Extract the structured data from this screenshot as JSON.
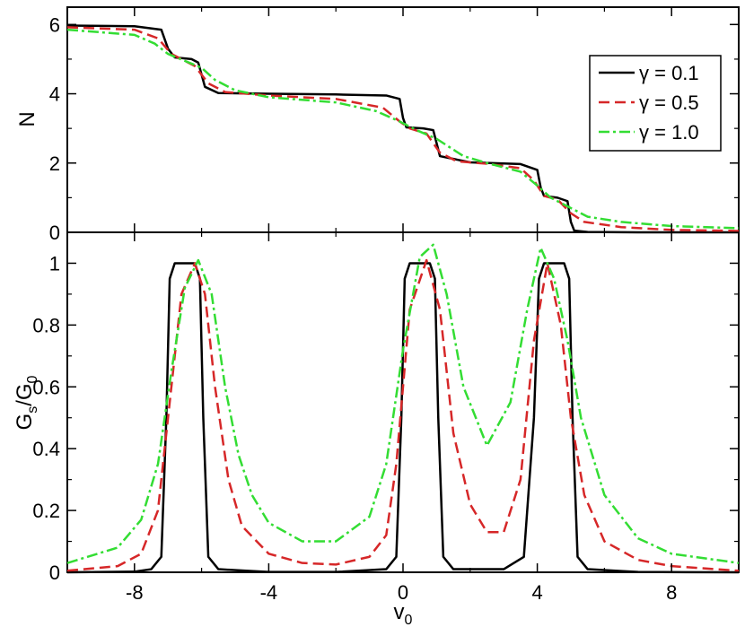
{
  "chart_data": [
    {
      "type": "line",
      "panel": "top",
      "ylabel": "N",
      "xlim": [
        -10,
        10
      ],
      "ylim": [
        0,
        6.5
      ],
      "yticks": [
        0,
        2,
        4,
        6
      ],
      "ytick_labels": [
        "0",
        "2",
        "4",
        "6"
      ],
      "legend": {
        "placement": "top-right",
        "entries": [
          "γ = 0.1",
          "γ = 0.5",
          "γ = 1.0"
        ]
      },
      "series": [
        {
          "name": "γ = 0.1",
          "color": "#000000",
          "style": "solid",
          "x": [
            -10,
            -8,
            -7.2,
            -7,
            -6.8,
            -6.3,
            -6.1,
            -5.9,
            -5.5,
            -4,
            -2,
            -0.5,
            -0.1,
            0,
            0.1,
            0.6,
            0.9,
            1.1,
            2,
            3.5,
            4,
            4.1,
            4.2,
            4.6,
            4.9,
            5,
            5.1,
            5.5,
            7,
            10
          ],
          "values": [
            5.97,
            5.95,
            5.85,
            5.3,
            5.05,
            5.0,
            4.9,
            4.2,
            4.02,
            4.0,
            3.98,
            3.95,
            3.85,
            3.3,
            3.03,
            3.0,
            2.95,
            2.2,
            2.02,
            1.97,
            1.8,
            1.3,
            1.05,
            1.0,
            0.9,
            0.3,
            0.05,
            0.01,
            0.0,
            0.0
          ]
        },
        {
          "name": "γ = 0.5",
          "color": "#d62728",
          "style": "dashed",
          "x": [
            -10,
            -8,
            -7.3,
            -6.9,
            -6.6,
            -6.2,
            -5.8,
            -5.3,
            -4,
            -2,
            -0.6,
            -0.1,
            0.2,
            0.7,
            1.1,
            1.6,
            2.5,
            3.5,
            3.9,
            4.2,
            4.6,
            5.0,
            5.4,
            6.5,
            8,
            10
          ],
          "values": [
            5.92,
            5.85,
            5.6,
            5.15,
            5.0,
            4.8,
            4.3,
            4.05,
            3.95,
            3.85,
            3.6,
            3.2,
            3.0,
            2.85,
            2.3,
            2.05,
            1.98,
            1.85,
            1.5,
            1.05,
            0.95,
            0.55,
            0.3,
            0.15,
            0.07,
            0.04
          ]
        },
        {
          "name": "γ = 1.0",
          "color": "#33dd33",
          "style": "dashdot",
          "x": [
            -10,
            -8,
            -7.4,
            -7,
            -6.5,
            -6,
            -5.6,
            -5,
            -4,
            -2,
            -0.8,
            -0.1,
            0.4,
            1,
            1.8,
            2.5,
            3.5,
            4,
            4.4,
            4.9,
            5.5,
            6.5,
            8,
            10
          ],
          "values": [
            5.85,
            5.7,
            5.45,
            5.15,
            4.95,
            4.75,
            4.4,
            4.1,
            3.9,
            3.75,
            3.5,
            3.2,
            2.95,
            2.7,
            2.2,
            2.0,
            1.75,
            1.35,
            1.0,
            0.75,
            0.45,
            0.3,
            0.18,
            0.12
          ]
        }
      ]
    },
    {
      "type": "line",
      "panel": "bottom",
      "xlabel": "v",
      "xlabel_sub": "0",
      "ylabel": "G",
      "ylabel_sub_1": "s",
      "ylabel_mid": "/G",
      "ylabel_sub_2": "0",
      "xlim": [
        -10,
        10
      ],
      "ylim": [
        0,
        1.1
      ],
      "xticks": [
        -8,
        -4,
        0,
        4,
        8
      ],
      "xtick_labels": [
        "-8",
        "-4",
        "0",
        "4",
        "8"
      ],
      "yticks": [
        0,
        0.2,
        0.4,
        0.6,
        0.8,
        1
      ],
      "ytick_labels": [
        "0",
        "0.2",
        "0.4",
        "0.6",
        "0.8",
        "1"
      ],
      "series": [
        {
          "name": "γ = 0.1",
          "color": "#000000",
          "style": "solid",
          "x": [
            -10,
            -8,
            -7.5,
            -7.2,
            -7.05,
            -6.95,
            -6.8,
            -6.2,
            -6.05,
            -5.95,
            -5.8,
            -5.5,
            -4,
            -2,
            -0.5,
            -0.2,
            -0.05,
            0.05,
            0.2,
            0.8,
            0.95,
            1.05,
            1.2,
            1.5,
            3,
            3.6,
            3.9,
            4.05,
            4.2,
            4.8,
            4.95,
            5.05,
            5.2,
            5.5,
            7,
            10
          ],
          "values": [
            0,
            0.002,
            0.01,
            0.05,
            0.5,
            0.95,
            1.0,
            1.0,
            0.95,
            0.5,
            0.05,
            0.01,
            0.001,
            0.001,
            0.01,
            0.05,
            0.5,
            0.95,
            1.0,
            1.0,
            0.95,
            0.5,
            0.05,
            0.01,
            0.01,
            0.05,
            0.5,
            0.95,
            1.0,
            1.0,
            0.95,
            0.5,
            0.05,
            0.01,
            0.001,
            0
          ]
        },
        {
          "name": "γ = 0.5",
          "color": "#d62728",
          "style": "dashed",
          "x": [
            -10,
            -8.5,
            -7.8,
            -7.3,
            -7,
            -6.6,
            -6.2,
            -5.9,
            -5.6,
            -5.2,
            -4.8,
            -4,
            -3,
            -2,
            -1,
            -0.5,
            -0.2,
            0.2,
            0.7,
            1.1,
            1.5,
            2,
            2.5,
            3,
            3.5,
            3.9,
            4.3,
            4.7,
            5,
            5.4,
            6,
            7,
            8,
            10
          ],
          "values": [
            0.005,
            0.02,
            0.06,
            0.2,
            0.5,
            0.9,
            1.0,
            0.9,
            0.6,
            0.3,
            0.15,
            0.06,
            0.03,
            0.025,
            0.05,
            0.12,
            0.35,
            0.85,
            1.01,
            0.85,
            0.45,
            0.22,
            0.13,
            0.13,
            0.3,
            0.75,
            1.0,
            0.8,
            0.5,
            0.25,
            0.1,
            0.04,
            0.02,
            0.005
          ]
        },
        {
          "name": "γ = 1.0",
          "color": "#33dd33",
          "style": "dashdot",
          "x": [
            -10,
            -8.5,
            -7.8,
            -7.3,
            -6.9,
            -6.5,
            -6.1,
            -5.7,
            -5.3,
            -4.9,
            -4.5,
            -4,
            -3,
            -2,
            -1,
            -0.5,
            0,
            0.5,
            0.9,
            1.3,
            1.8,
            2.5,
            3.2,
            3.7,
            4.1,
            4.5,
            4.9,
            5.3,
            6,
            7,
            8,
            10
          ],
          "values": [
            0.03,
            0.08,
            0.17,
            0.35,
            0.65,
            0.92,
            1.01,
            0.9,
            0.6,
            0.38,
            0.25,
            0.16,
            0.1,
            0.1,
            0.18,
            0.35,
            0.72,
            1.02,
            1.06,
            0.9,
            0.6,
            0.41,
            0.55,
            0.85,
            1.05,
            0.95,
            0.75,
            0.5,
            0.25,
            0.11,
            0.06,
            0.03
          ]
        }
      ]
    }
  ]
}
